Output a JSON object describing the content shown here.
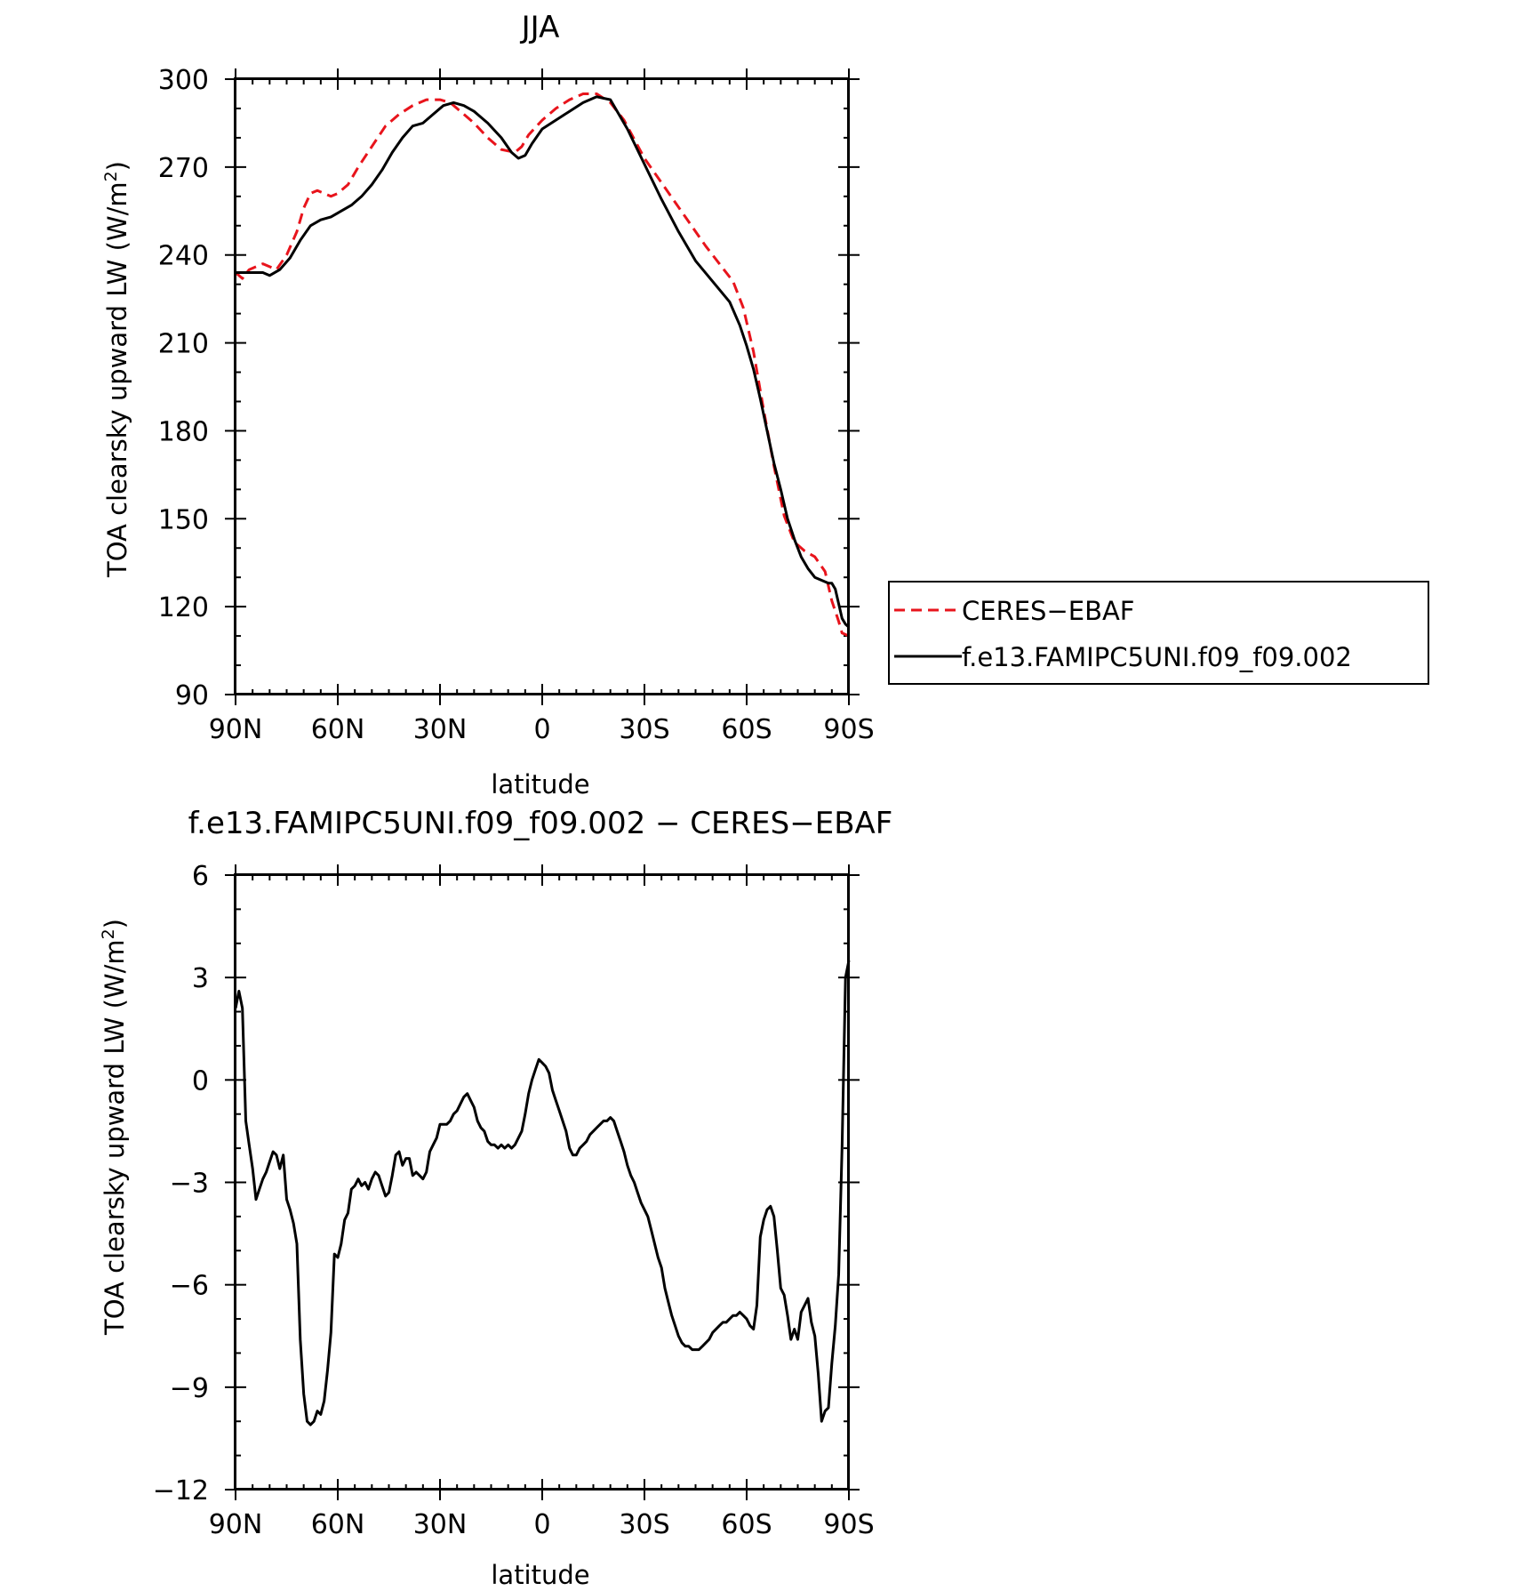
{
  "chart_data": [
    {
      "type": "line",
      "title": "JJA",
      "xlabel": "latitude",
      "ylabel_main": "TOA clearsky upward LW (W/m",
      "ylabel_sup": "2",
      "ylabel_close": ")",
      "xlim": [
        90,
        -90
      ],
      "ylim": [
        90,
        300
      ],
      "x_ticks": [
        90,
        60,
        30,
        0,
        -30,
        -60,
        -90
      ],
      "x_tick_labels": [
        "90N",
        "60N",
        "30N",
        "0",
        "30S",
        "60S",
        "90S"
      ],
      "y_ticks": [
        90,
        120,
        150,
        180,
        210,
        240,
        270,
        300
      ],
      "y_tick_labels": [
        "90",
        "120",
        "150",
        "180",
        "210",
        "240",
        "270",
        "300"
      ],
      "grid": false,
      "legend_position": "right",
      "series": [
        {
          "name": "CERES−EBAF",
          "color": "#e8141c",
          "dash": true,
          "x": [
            90,
            88,
            86,
            82,
            78,
            75,
            72,
            70,
            68,
            66,
            64,
            62,
            60,
            57,
            54,
            50,
            46,
            42,
            38,
            34,
            30,
            27,
            24,
            20,
            16,
            12,
            8,
            6,
            4,
            0,
            -4,
            -8,
            -12,
            -16,
            -20,
            -24,
            -30,
            -36,
            -42,
            -48,
            -52,
            -56,
            -59,
            -62,
            -65,
            -68,
            -71,
            -74,
            -77,
            -80,
            -83,
            -85,
            -87,
            -88,
            -90
          ],
          "values": [
            234,
            232,
            235,
            237,
            235,
            240,
            248,
            256,
            261,
            262,
            261,
            260,
            261,
            264,
            270,
            277,
            284,
            288,
            291,
            293,
            293,
            292,
            289,
            285,
            280,
            276,
            275,
            277,
            281,
            286,
            290,
            293,
            295,
            295,
            292,
            286,
            273,
            263,
            253,
            243,
            237,
            231,
            222,
            207,
            187,
            168,
            151,
            142,
            139,
            137,
            132,
            122,
            115,
            111,
            110
          ]
        },
        {
          "name": "f.e13.FAMIPC5UNI.f09_f09.002",
          "color": "#000000",
          "dash": false,
          "x": [
            90,
            88,
            85,
            82,
            80,
            77,
            74,
            71,
            68,
            65,
            62,
            59,
            56,
            53,
            50,
            47,
            44,
            41,
            38,
            35,
            32,
            29,
            26,
            23,
            20,
            16,
            12,
            9,
            7,
            5,
            3,
            0,
            -4,
            -8,
            -12,
            -16,
            -20,
            -25,
            -30,
            -35,
            -40,
            -45,
            -50,
            -55,
            -58,
            -60,
            -62,
            -64,
            -66,
            -68,
            -70,
            -72,
            -74,
            -76,
            -78,
            -80,
            -82,
            -84,
            -85,
            -86,
            -87,
            -88,
            -89,
            -90
          ],
          "values": [
            234,
            234,
            234,
            234,
            233,
            235,
            239,
            245,
            250,
            252,
            253,
            255,
            257,
            260,
            264,
            269,
            275,
            280,
            284,
            285,
            288,
            291,
            292,
            291,
            289,
            285,
            280,
            275,
            273,
            274,
            278,
            283,
            286,
            289,
            292,
            294,
            293,
            283,
            271,
            259,
            248,
            238,
            231,
            224,
            216,
            209,
            201,
            191,
            180,
            169,
            160,
            150,
            143,
            137,
            133,
            130,
            129,
            128,
            128,
            126,
            121,
            116,
            114,
            113
          ]
        }
      ]
    },
    {
      "type": "line",
      "title": "f.e13.FAMIPC5UNI.f09_f09.002 − CERES−EBAF",
      "xlabel": "latitude",
      "ylabel_main": "TOA clearsky upward LW (W/m",
      "ylabel_sup": "2",
      "ylabel_close": ")",
      "xlim": [
        90,
        -90
      ],
      "ylim": [
        -12,
        6
      ],
      "x_ticks": [
        90,
        60,
        30,
        0,
        -30,
        -60,
        -90
      ],
      "x_tick_labels": [
        "90N",
        "60N",
        "30N",
        "0",
        "30S",
        "60S",
        "90S"
      ],
      "y_ticks": [
        -12,
        -9,
        -6,
        -3,
        0,
        3,
        6
      ],
      "y_tick_labels": [
        "−12",
        "−9",
        "−6",
        "−3",
        "0",
        "3",
        "6"
      ],
      "grid": false,
      "series": [
        {
          "color": "#000000",
          "dash": false,
          "x": [
            90,
            89,
            88,
            87,
            86,
            85,
            84,
            83,
            82,
            81,
            80,
            79,
            78,
            77,
            76,
            75,
            74,
            73,
            72,
            71,
            70,
            69,
            68,
            67,
            66,
            65,
            64,
            63,
            62,
            61,
            60,
            59,
            58,
            57,
            56,
            55,
            54,
            53,
            52,
            51,
            50,
            49,
            48,
            47,
            46,
            45,
            44,
            43,
            42,
            41,
            40,
            39,
            38,
            37,
            36,
            35,
            34,
            33,
            32,
            31,
            30,
            29,
            28,
            27,
            26,
            25,
            24,
            23,
            22,
            21,
            20,
            19,
            18,
            17,
            16,
            15,
            14,
            13,
            12,
            11,
            10,
            9,
            8,
            7,
            6,
            5,
            4,
            3,
            2,
            1,
            0,
            -1,
            -2,
            -3,
            -4,
            -5,
            -6,
            -7,
            -8,
            -9,
            -10,
            -11,
            -12,
            -13,
            -14,
            -15,
            -16,
            -17,
            -18,
            -19,
            -20,
            -21,
            -22,
            -23,
            -24,
            -25,
            -26,
            -27,
            -28,
            -29,
            -30,
            -31,
            -32,
            -33,
            -34,
            -35,
            -36,
            -37,
            -38,
            -39,
            -40,
            -41,
            -42,
            -43,
            -44,
            -45,
            -46,
            -47,
            -48,
            -49,
            -50,
            -51,
            -52,
            -53,
            -54,
            -55,
            -56,
            -57,
            -58,
            -59,
            -60,
            -61,
            -62,
            -63,
            -64,
            -65,
            -66,
            -67,
            -68,
            -69,
            -70,
            -71,
            -72,
            -73,
            -74,
            -75,
            -76,
            -77,
            -78,
            -79,
            -80,
            -81,
            -82,
            -83,
            -84,
            -85,
            -86,
            -87,
            -88,
            -89,
            -90
          ],
          "values": [
            2.1,
            2.6,
            2.1,
            -1.2,
            -1.9,
            -2.6,
            -3.5,
            -3.2,
            -2.9,
            -2.7,
            -2.4,
            -2.1,
            -2.2,
            -2.6,
            -2.2,
            -3.5,
            -3.8,
            -4.2,
            -4.8,
            -7.6,
            -9.2,
            -10.0,
            -10.1,
            -10.0,
            -9.7,
            -9.8,
            -9.4,
            -8.5,
            -7.4,
            -5.1,
            -5.2,
            -4.8,
            -4.1,
            -3.9,
            -3.2,
            -3.1,
            -2.9,
            -3.1,
            -3.0,
            -3.2,
            -2.9,
            -2.7,
            -2.8,
            -3.1,
            -3.4,
            -3.3,
            -2.8,
            -2.2,
            -2.1,
            -2.5,
            -2.3,
            -2.3,
            -2.8,
            -2.7,
            -2.8,
            -2.9,
            -2.7,
            -2.1,
            -1.9,
            -1.7,
            -1.3,
            -1.3,
            -1.3,
            -1.2,
            -1.0,
            -0.9,
            -0.7,
            -0.5,
            -0.4,
            -0.6,
            -0.8,
            -1.2,
            -1.4,
            -1.5,
            -1.8,
            -1.9,
            -1.9,
            -2.0,
            -1.9,
            -2.0,
            -1.9,
            -2.0,
            -1.9,
            -1.7,
            -1.5,
            -1.0,
            -0.4,
            0.0,
            0.3,
            0.6,
            0.5,
            0.4,
            0.2,
            -0.3,
            -0.6,
            -0.9,
            -1.2,
            -1.5,
            -2.0,
            -2.2,
            -2.2,
            -2.0,
            -1.9,
            -1.8,
            -1.6,
            -1.5,
            -1.4,
            -1.3,
            -1.2,
            -1.2,
            -1.1,
            -1.2,
            -1.5,
            -1.8,
            -2.1,
            -2.5,
            -2.8,
            -3.0,
            -3.3,
            -3.6,
            -3.8,
            -4.0,
            -4.4,
            -4.8,
            -5.2,
            -5.5,
            -6.1,
            -6.5,
            -6.9,
            -7.2,
            -7.5,
            -7.7,
            -7.8,
            -7.8,
            -7.9,
            -7.9,
            -7.9,
            -7.8,
            -7.7,
            -7.6,
            -7.4,
            -7.3,
            -7.2,
            -7.1,
            -7.1,
            -7.0,
            -6.9,
            -6.9,
            -6.8,
            -6.9,
            -7.0,
            -7.2,
            -7.3,
            -6.6,
            -4.6,
            -4.1,
            -3.8,
            -3.7,
            -4.0,
            -5.0,
            -6.1,
            -6.3,
            -6.9,
            -7.6,
            -7.3,
            -7.6,
            -6.8,
            -6.6,
            -6.4,
            -7.1,
            -7.5,
            -8.6,
            -10.0,
            -9.7,
            -9.6,
            -8.3,
            -7.2,
            -5.7,
            -2.0,
            3.0,
            3.5
          ]
        }
      ]
    }
  ]
}
